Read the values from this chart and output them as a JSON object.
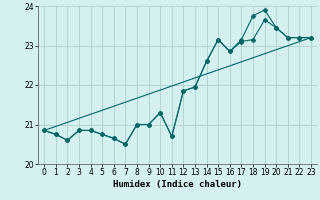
{
  "xlabel": "Humidex (Indice chaleur)",
  "bg_color": "#d4f0f0",
  "grid_color": "#b0d0d0",
  "line_color": "#006666",
  "xlim": [
    -0.5,
    23.5
  ],
  "ylim": [
    20.0,
    24.0
  ],
  "yticks": [
    20,
    21,
    22,
    23,
    24
  ],
  "xticks": [
    0,
    1,
    2,
    3,
    4,
    5,
    6,
    7,
    8,
    9,
    10,
    11,
    12,
    13,
    14,
    15,
    16,
    17,
    18,
    19,
    20,
    21,
    22,
    23
  ],
  "line1_x": [
    0,
    1,
    2,
    3,
    4,
    5,
    6,
    7,
    8,
    9,
    10,
    11,
    12,
    13,
    14,
    15,
    16,
    17,
    18,
    19,
    20,
    21,
    22,
    23
  ],
  "line1_y": [
    20.85,
    20.75,
    20.6,
    20.85,
    20.85,
    20.75,
    20.65,
    20.5,
    21.0,
    21.0,
    21.3,
    20.7,
    21.85,
    21.95,
    22.6,
    23.15,
    22.85,
    23.1,
    23.15,
    23.65,
    23.45,
    23.2,
    23.2,
    23.2
  ],
  "line2_x": [
    0,
    1,
    2,
    3,
    4,
    5,
    6,
    7,
    8,
    9,
    10,
    11,
    12,
    13,
    14,
    15,
    16,
    17,
    18,
    19,
    20,
    21,
    22,
    23
  ],
  "line2_y": [
    20.85,
    20.75,
    20.6,
    20.85,
    20.85,
    20.75,
    20.65,
    20.5,
    21.0,
    21.0,
    21.3,
    20.7,
    21.85,
    21.95,
    22.6,
    23.15,
    22.85,
    23.15,
    23.75,
    23.9,
    23.45,
    23.2,
    23.2,
    23.2
  ],
  "line3_x": [
    0,
    23
  ],
  "line3_y": [
    20.85,
    23.2
  ]
}
